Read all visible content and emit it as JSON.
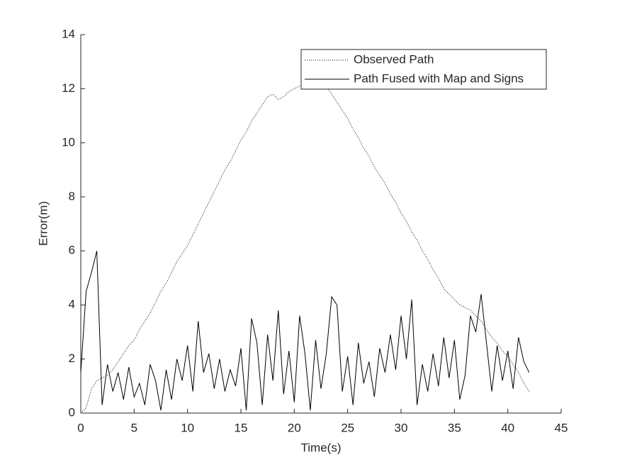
{
  "chart_data": {
    "type": "line",
    "xlabel": "Time(s)",
    "ylabel": "Error(m)",
    "xlim": [
      0,
      45
    ],
    "xticks": [
      0,
      5,
      10,
      15,
      20,
      25,
      30,
      35,
      40,
      45
    ],
    "ylim": [
      0,
      14
    ],
    "yticks": [
      0,
      2,
      4,
      6,
      8,
      10,
      12,
      14
    ],
    "grid": false,
    "legend": "northeast",
    "x": [
      0,
      0.5,
      1,
      1.5,
      2,
      2.5,
      3,
      3.5,
      4,
      4.5,
      5,
      5.5,
      6,
      6.5,
      7,
      7.5,
      8,
      8.5,
      9,
      9.5,
      10,
      10.5,
      11,
      11.5,
      12,
      12.5,
      13,
      13.5,
      14,
      14.5,
      15,
      15.5,
      16,
      16.5,
      17,
      17.5,
      18,
      18.5,
      19,
      19.5,
      20,
      20.5,
      21,
      21.5,
      22,
      22.5,
      23,
      23.5,
      24,
      24.5,
      25,
      25.5,
      26,
      26.5,
      27,
      27.5,
      28,
      28.5,
      29,
      29.5,
      30,
      30.5,
      31,
      31.5,
      32,
      32.5,
      33,
      33.5,
      34,
      34.5,
      35,
      35.5,
      36,
      36.5,
      37,
      37.5,
      38,
      38.5,
      39,
      39.5,
      40,
      40.5,
      41,
      41.5,
      42
    ],
    "series": [
      {
        "name": "Observed Path",
        "color": "#000000",
        "dash": "dotted",
        "values": [
          0,
          0.2,
          0.9,
          1.2,
          1.3,
          1.4,
          1.6,
          1.9,
          2.2,
          2.5,
          2.7,
          3.1,
          3.4,
          3.7,
          4.1,
          4.5,
          4.8,
          5.2,
          5.6,
          5.9,
          6.2,
          6.6,
          7.0,
          7.4,
          7.8,
          8.2,
          8.6,
          9.0,
          9.3,
          9.7,
          10.1,
          10.4,
          10.8,
          11.1,
          11.4,
          11.7,
          11.8,
          11.6,
          11.7,
          11.9,
          12.0,
          12.1,
          12.2,
          12.3,
          12.4,
          12.3,
          12.1,
          11.8,
          11.5,
          11.2,
          10.9,
          10.5,
          10.2,
          9.8,
          9.5,
          9.1,
          8.8,
          8.5,
          8.1,
          7.8,
          7.4,
          7.1,
          6.7,
          6.4,
          6.0,
          5.7,
          5.3,
          5.0,
          4.6,
          4.4,
          4.2,
          4.0,
          3.9,
          3.8,
          3.6,
          3.4,
          3.1,
          2.8,
          2.6,
          2.3,
          2.1,
          1.8,
          1.5,
          1.1,
          0.8
        ]
      },
      {
        "name": "Path Fused with Map and Signs",
        "color": "#000000",
        "dash": "solid",
        "values": [
          1.5,
          4.5,
          5.2,
          6.0,
          0.3,
          1.8,
          0.8,
          1.5,
          0.5,
          1.7,
          0.6,
          1.1,
          0.3,
          1.8,
          1.2,
          0.1,
          1.6,
          0.5,
          2.0,
          1.2,
          2.5,
          0.8,
          3.4,
          1.5,
          2.2,
          0.9,
          2.0,
          0.8,
          1.6,
          1.0,
          2.4,
          0.1,
          3.5,
          2.6,
          0.3,
          2.9,
          1.2,
          3.8,
          0.7,
          2.3,
          0.4,
          3.6,
          2.2,
          0.1,
          2.7,
          0.9,
          2.2,
          4.3,
          4.0,
          0.8,
          2.1,
          0.3,
          2.6,
          1.1,
          1.9,
          0.6,
          2.4,
          1.5,
          2.9,
          1.6,
          3.6,
          2.0,
          4.2,
          0.3,
          1.8,
          0.8,
          2.2,
          1.0,
          2.8,
          1.3,
          2.7,
          0.5,
          1.4,
          3.6,
          3.0,
          4.4,
          2.6,
          0.8,
          2.5,
          1.2,
          2.3,
          0.9,
          2.8,
          1.9,
          1.5
        ]
      }
    ]
  }
}
